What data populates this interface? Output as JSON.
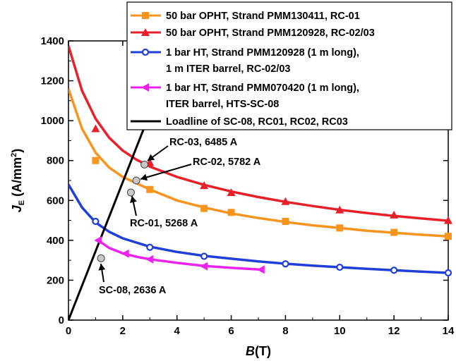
{
  "chart_data": {
    "type": "line",
    "xlabel": "B(T)",
    "ylabel": "J_E (A/mm^2)",
    "xlim": [
      0,
      14
    ],
    "ylim": [
      0,
      1400
    ],
    "x_ticks": [
      "0",
      "2",
      "4",
      "6",
      "8",
      "10",
      "12",
      "14"
    ],
    "y_ticks": [
      "0",
      "200",
      "400",
      "600",
      "800",
      "1000",
      "1200",
      "1400"
    ],
    "legend_position": "top-right",
    "series": [
      {
        "name": "50 bar OPHT, Strand PMM130411, RC-01",
        "color": "#f7941d",
        "marker": "square",
        "points": [
          [
            1,
            800
          ],
          [
            3,
            655
          ],
          [
            5,
            560
          ],
          [
            6,
            540
          ],
          [
            8,
            495
          ],
          [
            10,
            462
          ],
          [
            12,
            440
          ],
          [
            14,
            420
          ]
        ],
        "fit": [
          [
            0,
            1160
          ],
          [
            0.5,
            960
          ],
          [
            1,
            840
          ],
          [
            1.5,
            765
          ],
          [
            2,
            718
          ],
          [
            3,
            655
          ],
          [
            4,
            600
          ],
          [
            5,
            565
          ],
          [
            6,
            535
          ],
          [
            7,
            512
          ],
          [
            8,
            492
          ],
          [
            9,
            475
          ],
          [
            10,
            462
          ],
          [
            11,
            448
          ],
          [
            12,
            438
          ],
          [
            13,
            428
          ],
          [
            14,
            420
          ]
        ]
      },
      {
        "name": "50 bar OPHT, Strand PMM120928, RC-02/03",
        "color": "#e8202a",
        "marker": "triangle",
        "points": [
          [
            1,
            960
          ],
          [
            3,
            790
          ],
          [
            5,
            675
          ],
          [
            6,
            640
          ],
          [
            8,
            595
          ],
          [
            10,
            553
          ],
          [
            12,
            527
          ],
          [
            14,
            500
          ]
        ],
        "fit": [
          [
            0,
            1375
          ],
          [
            0.5,
            1150
          ],
          [
            1,
            1010
          ],
          [
            1.5,
            915
          ],
          [
            2,
            850
          ],
          [
            2.5,
            805
          ],
          [
            3,
            770
          ],
          [
            4,
            718
          ],
          [
            5,
            678
          ],
          [
            6,
            645
          ],
          [
            7,
            617
          ],
          [
            8,
            593
          ],
          [
            9,
            572
          ],
          [
            10,
            553
          ],
          [
            11,
            537
          ],
          [
            12,
            522
          ],
          [
            13,
            510
          ],
          [
            14,
            498
          ]
        ]
      },
      {
        "name": "1 bar HT, Strand PMM120928 (1 m long), 1 m ITER barrel, RC-02/03",
        "color": "#1f3fd8",
        "marker": "circle",
        "points": [
          [
            1,
            495
          ],
          [
            3,
            365
          ],
          [
            5,
            320
          ],
          [
            8,
            282
          ],
          [
            10,
            265
          ],
          [
            12,
            250
          ],
          [
            14,
            237
          ]
        ],
        "fit": [
          [
            0,
            680
          ],
          [
            0.5,
            565
          ],
          [
            1,
            490
          ],
          [
            1.5,
            443
          ],
          [
            2,
            410
          ],
          [
            3,
            368
          ],
          [
            4,
            342
          ],
          [
            5,
            322
          ],
          [
            6,
            308
          ],
          [
            7,
            294
          ],
          [
            8,
            283
          ],
          [
            9,
            273
          ],
          [
            10,
            265
          ],
          [
            11,
            257
          ],
          [
            12,
            250
          ],
          [
            13,
            243
          ],
          [
            14,
            237
          ]
        ]
      },
      {
        "name": "1 bar HT, Strand PMM070420 (1 m long), ITER barrel, HTS-SC-08",
        "color": "#ee22ee",
        "marker": "left-triangle",
        "points": [
          [
            1.1,
            400
          ],
          [
            2.1,
            333
          ],
          [
            3,
            305
          ],
          [
            5,
            270
          ],
          [
            7.1,
            253
          ]
        ],
        "fit": [
          [
            1.1,
            400
          ],
          [
            1.5,
            362
          ],
          [
            2,
            335
          ],
          [
            2.5,
            318
          ],
          [
            3,
            305
          ],
          [
            4,
            287
          ],
          [
            5,
            272
          ],
          [
            6,
            262
          ],
          [
            7.1,
            253
          ]
        ]
      },
      {
        "name": "Loadline of SC-08, RC01, RC02, RC03",
        "color": "#000000",
        "marker": "none",
        "points": [
          [
            0,
            0
          ],
          [
            4.05,
            1400
          ]
        ]
      }
    ],
    "intersections": [
      {
        "label": "RC-03, 6485 A",
        "x": 2.8,
        "y": 780
      },
      {
        "label": "RC-02, 5782 A",
        "x": 2.5,
        "y": 700
      },
      {
        "label": "RC-01, 5268 A",
        "x": 2.3,
        "y": 640
      },
      {
        "label": "SC-08, 2636 A",
        "x": 1.2,
        "y": 310
      }
    ]
  }
}
